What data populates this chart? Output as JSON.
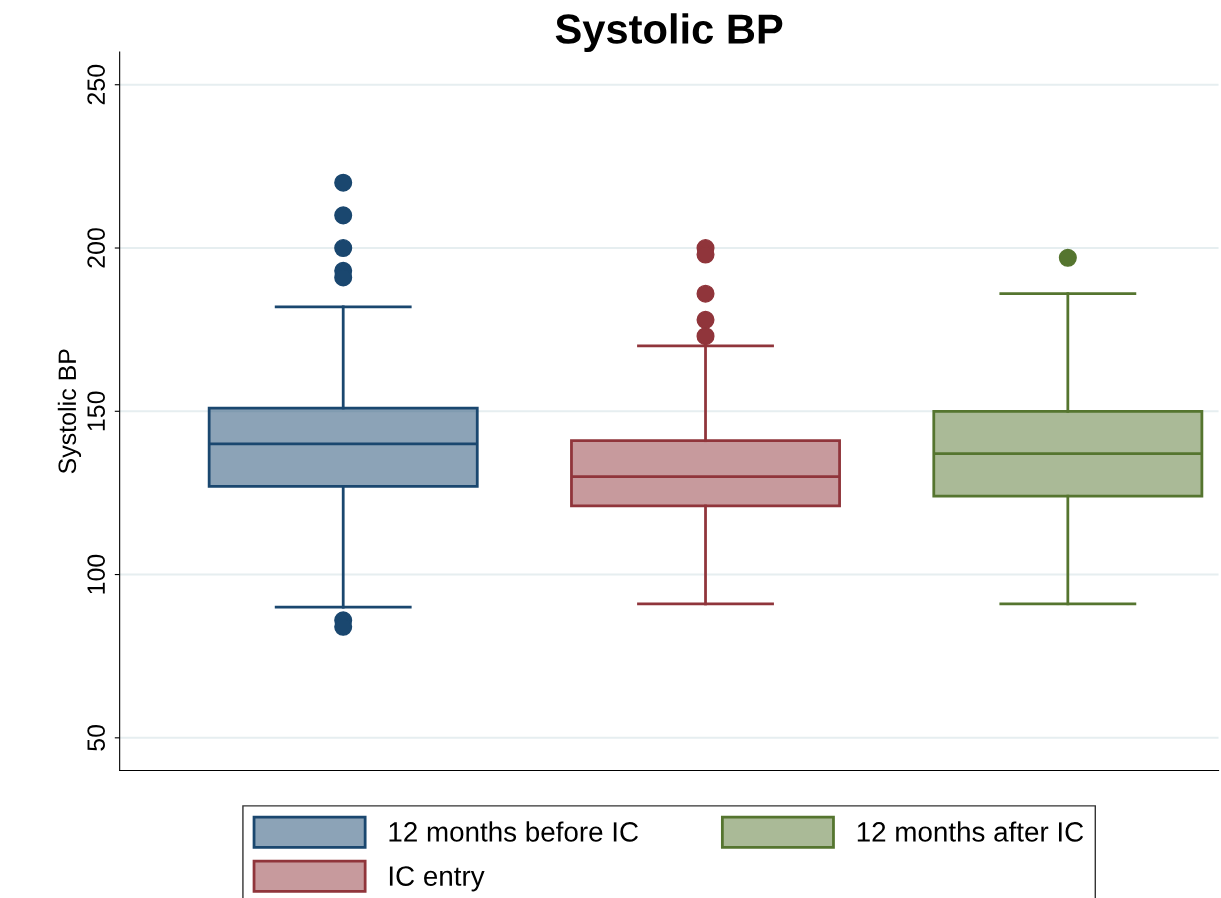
{
  "chart_data": {
    "type": "box",
    "title": "Systolic BP",
    "ylabel": "Systolic BP",
    "categories": [
      null
    ],
    "series": [
      {
        "name": "12 months before IC",
        "color": "#1a476f",
        "boxes": [
          {
            "low": 90,
            "q1": 127,
            "median": 140,
            "q3": 151,
            "high": 182,
            "outliers": [
              220,
              210,
              200,
              193,
              191,
              86,
              84
            ]
          }
        ]
      },
      {
        "name": "IC entry",
        "color": "#90353b",
        "boxes": [
          {
            "low": 91,
            "q1": 121,
            "median": 130,
            "q3": 141,
            "high": 170,
            "outliers": [
              200,
              198,
              186,
              178,
              173
            ]
          }
        ]
      },
      {
        "name": "12 months after IC",
        "color": "#55752f",
        "boxes": [
          {
            "low": 91,
            "q1": 124,
            "median": 137,
            "q3": 150,
            "high": 186,
            "outliers": [
              197
            ]
          }
        ]
      }
    ],
    "ylim": [
      40,
      260
    ],
    "yticks": [
      50,
      100,
      150,
      200,
      250
    ],
    "grid": "y",
    "legend": "bottom",
    "tick_labels": "y"
  }
}
